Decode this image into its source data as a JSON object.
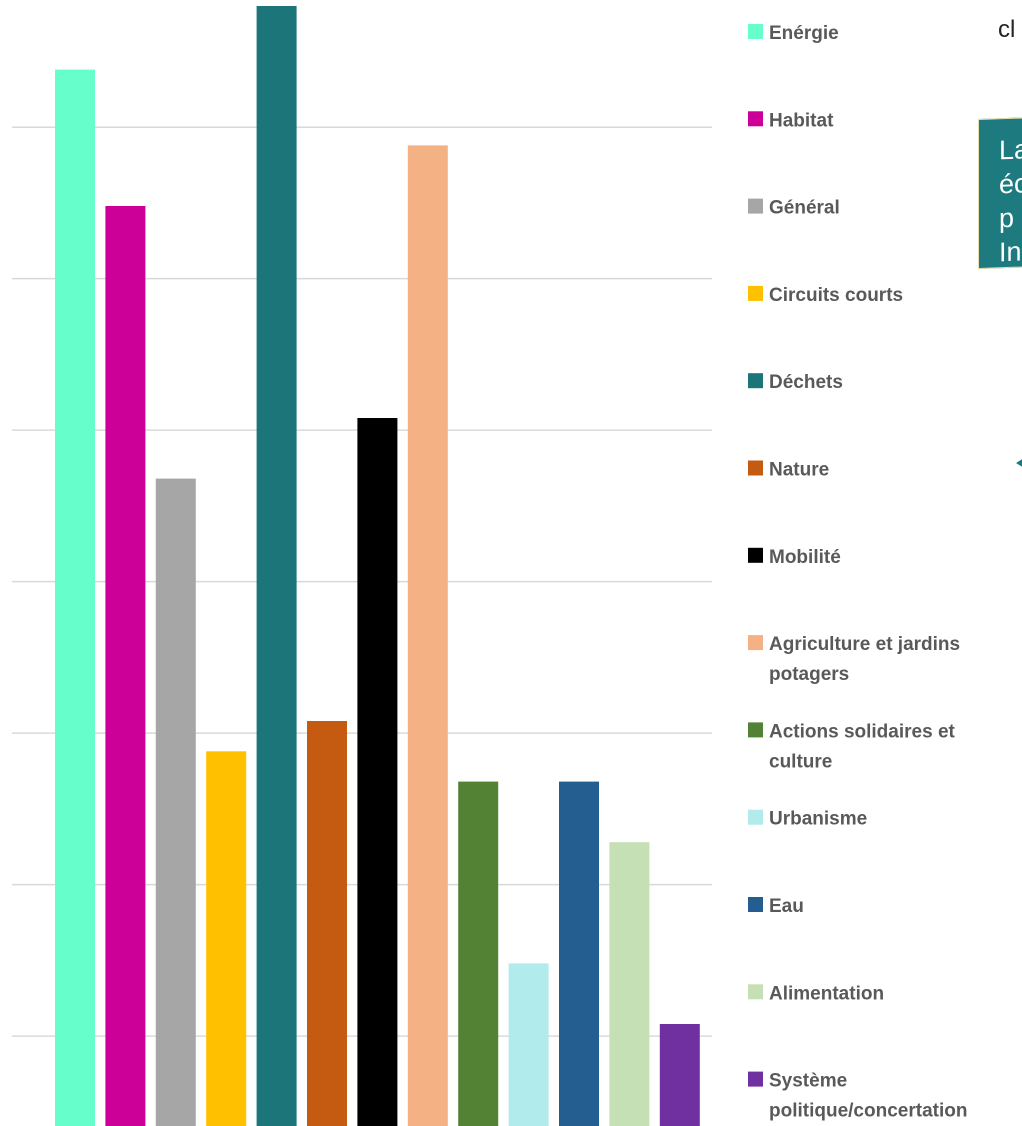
{
  "chart_data": {
    "type": "bar",
    "categories": [
      "Enérgie",
      "Habitat",
      "Général",
      "Circuits courts",
      "Déchets",
      "Nature",
      "Mobilité",
      "Agriculture et jardins potagers",
      "Actions solidaires et culture",
      "Urbanisme",
      "Eau",
      "Alimentation",
      "Système politique/concertation"
    ],
    "values": [
      26.9,
      22.4,
      13.4,
      4.4,
      29.0,
      5.4,
      15.4,
      24.4,
      3.4,
      -2.6,
      3.4,
      1.4,
      -4.6
    ],
    "colors": [
      "#66ffcc",
      "#cc0099",
      "#a6a6a6",
      "#ffc000",
      "#1b7579",
      "#c55a11",
      "#000000",
      "#f4b183",
      "#548235",
      "#b2ebeb",
      "#245d8f",
      "#c5e0b4",
      "#7030a0"
    ],
    "ylim": [
      -8,
      29
    ],
    "grid_step": 5,
    "grid": true,
    "legend_position": "right",
    "legend": [
      {
        "label_lines": [
          "Enérgie"
        ]
      },
      {
        "label_lines": [
          "Habitat"
        ]
      },
      {
        "label_lines": [
          "Général"
        ]
      },
      {
        "label_lines": [
          "Circuits courts"
        ]
      },
      {
        "label_lines": [
          "Déchets"
        ]
      },
      {
        "label_lines": [
          "Nature"
        ]
      },
      {
        "label_lines": [
          "Mobilité"
        ]
      },
      {
        "label_lines": [
          "Agriculture et jardins",
          "potagers"
        ]
      },
      {
        "label_lines": [
          "Actions solidaires et",
          "culture"
        ]
      },
      {
        "label_lines": [
          "Urbanisme"
        ]
      },
      {
        "label_lines": [
          "Eau"
        ]
      },
      {
        "label_lines": [
          "Alimentation"
        ]
      },
      {
        "label_lines": [
          "Système",
          "politique/concertation"
        ]
      }
    ]
  },
  "overlay": {
    "clipped_text": "cl",
    "callout_lines": [
      "La",
      "éc",
      "p",
      "In"
    ],
    "accent_color": "#1d7a7e"
  }
}
